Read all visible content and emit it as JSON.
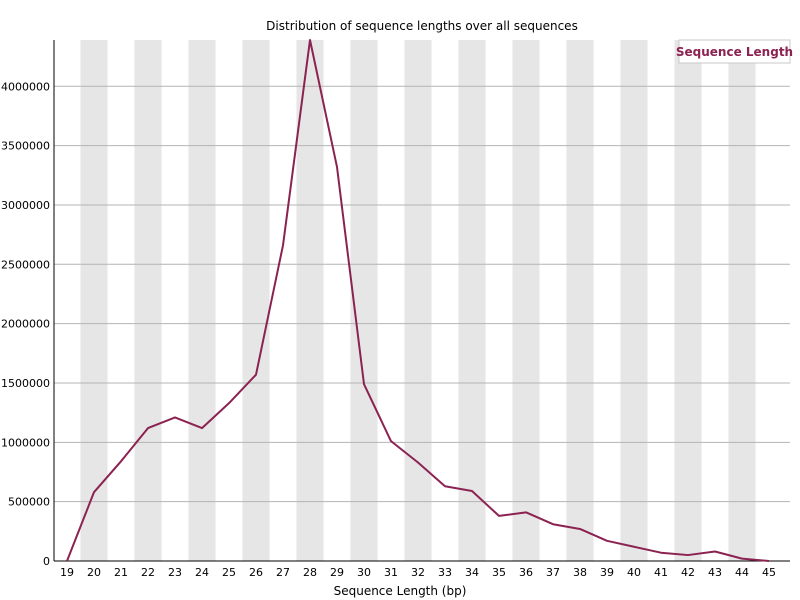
{
  "chart_data": {
    "type": "line",
    "title": "Distribution of sequence lengths over all sequences",
    "xlabel": "Sequence Length (bp)",
    "ylabel": "",
    "x": [
      19,
      20,
      21,
      22,
      23,
      24,
      25,
      26,
      27,
      28,
      29,
      30,
      31,
      32,
      33,
      34,
      35,
      36,
      37,
      38,
      39,
      40,
      41,
      42,
      43,
      44,
      45
    ],
    "series": [
      {
        "name": "Sequence Length",
        "color": "#8b2252",
        "values": [
          0,
          580000,
          840000,
          1120000,
          1210000,
          1120000,
          1330000,
          1570000,
          2660000,
          4390000,
          3320000,
          1490000,
          1010000,
          830000,
          630000,
          590000,
          380000,
          410000,
          310000,
          270000,
          170000,
          120000,
          70000,
          50000,
          80000,
          20000,
          0
        ]
      }
    ],
    "yticks": [
      0,
      500000,
      1000000,
      1500000,
      2000000,
      2500000,
      3000000,
      3500000,
      4000000
    ],
    "ylim": [
      0,
      4390000
    ],
    "grid": true,
    "legend_position": "top-right",
    "band_color": "#e6e6e6",
    "grid_color": "#b4b4b4"
  }
}
